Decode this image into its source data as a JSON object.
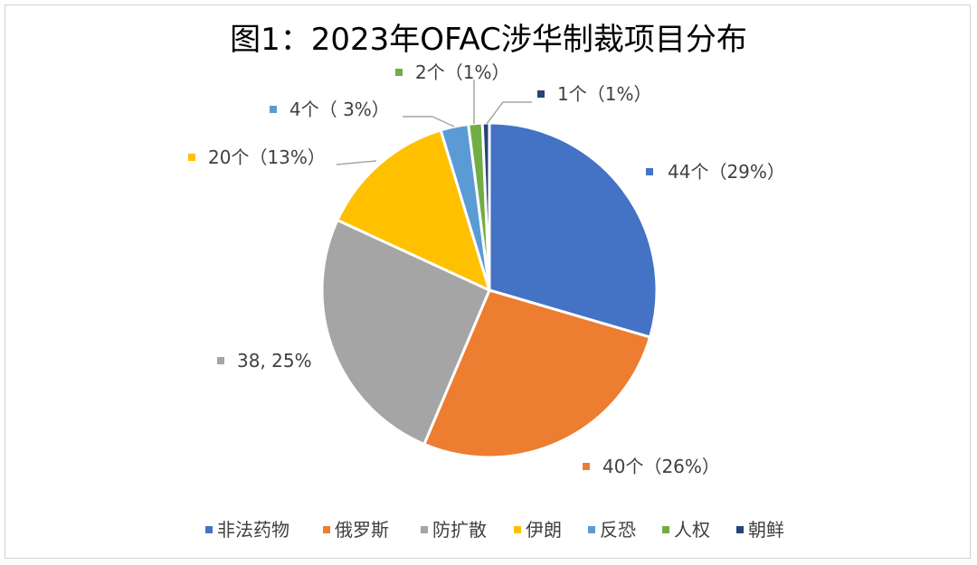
{
  "chart_data": {
    "type": "pie",
    "title": "图1：2023年OFAC涉华制裁项目分布",
    "series": [
      {
        "values": [
          44,
          40,
          38,
          20,
          4,
          2,
          1
        ]
      }
    ],
    "categories": [
      "非法药物",
      "俄罗斯",
      "防扩散",
      "伊朗",
      "反恐",
      "人权",
      "朝鲜"
    ],
    "data_labels": [
      "44个（29%）",
      "40个（26%）",
      "38, 25%",
      "20个（13%）",
      "4个（ 3%）",
      "2个（1%）",
      "1个（1%）"
    ],
    "colors": [
      "#4472C4",
      "#ED7D31",
      "#A5A5A5",
      "#FFC000",
      "#5B9BD5",
      "#70AD47",
      "#264478"
    ],
    "start_angle_deg": 0,
    "direction": "clockwise",
    "legend_position": "bottom"
  }
}
